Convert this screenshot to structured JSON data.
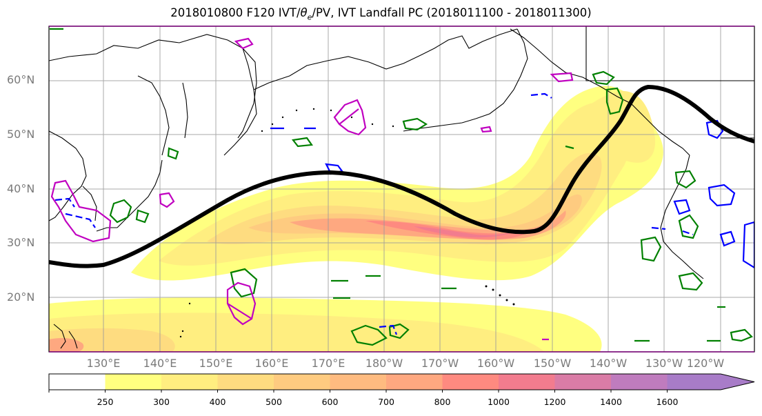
{
  "title": {
    "base": "2018010800 F120 IVT/",
    "theta": "θ",
    "theta_sub": "e",
    "rest": "/PV, IVT Landfall PC (2018011100 - 2018011300)"
  },
  "lat_labels": [
    "60°N",
    "50°N",
    "40°N",
    "30°N",
    "20°N"
  ],
  "lon_labels": [
    "130°E",
    "140°E",
    "150°E",
    "160°E",
    "170°E",
    "180°W",
    "170°W",
    "160°W",
    "150°W",
    "140°W",
    "130°W",
    "120°W"
  ],
  "colorbar": {
    "ticks": [
      "250",
      "300",
      "400",
      "500",
      "600",
      "700",
      "800",
      "1000",
      "1200",
      "1400",
      "1600"
    ],
    "colors": [
      "#ffffff",
      "#ffff80",
      "#ffee80",
      "#fedc80",
      "#fecb80",
      "#febb80",
      "#fea880",
      "#fe8a80",
      "#f27c8e",
      "#da7ca6",
      "#bf7cbe",
      "#a87cc8"
    ]
  },
  "legend_colors": {
    "ivt_landfall_pc": "#000000",
    "positive_contour": "#008000",
    "negative_contour": "#0000ff",
    "pv_contour": "#c000c0"
  }
}
